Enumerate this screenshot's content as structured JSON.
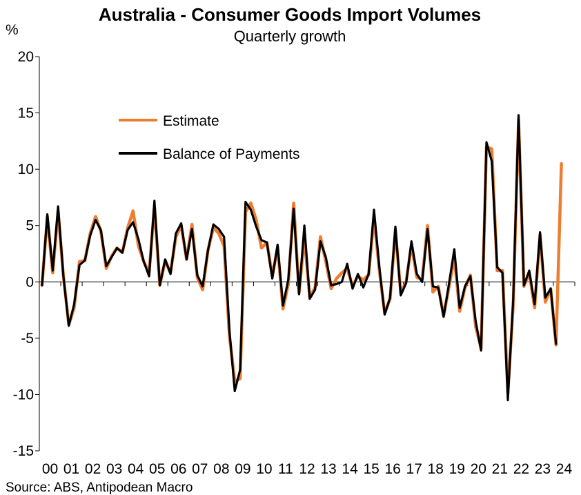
{
  "chart_data": {
    "type": "line",
    "title": "Australia - Consumer Goods Import Volumes",
    "subtitle": "Quarterly growth",
    "ylabel": "%",
    "ylim": [
      -15,
      20
    ],
    "yticks": [
      20,
      15,
      10,
      5,
      0,
      -5,
      -10,
      -15
    ],
    "x_start": "2000-Q1",
    "xtick_labels": [
      "00",
      "01",
      "02",
      "03",
      "04",
      "05",
      "06",
      "07",
      "08",
      "09",
      "10",
      "11",
      "12",
      "13",
      "14",
      "15",
      "16",
      "17",
      "18",
      "19",
      "20",
      "21",
      "22",
      "23",
      "24"
    ],
    "grid": false,
    "legend_position": "top-left",
    "source": "Source: ABS, Antipodean Macro",
    "series": [
      {
        "name": "Estimate",
        "color": "#ED7D31",
        "values": [
          -0.3,
          5.8,
          0.8,
          6.3,
          0.5,
          -3.8,
          -2.3,
          1.8,
          1.9,
          4.3,
          5.8,
          4.5,
          1.2,
          2.3,
          3.0,
          2.6,
          4.8,
          6.3,
          3.2,
          1.8,
          0.8,
          6.7,
          -0.3,
          1.9,
          0.8,
          4.0,
          5.0,
          2.0,
          5.1,
          0.4,
          -0.7,
          2.8,
          4.8,
          4.3,
          3.2,
          -4.8,
          -8.8,
          -8.6,
          6.2,
          7.0,
          5.5,
          3.0,
          3.5,
          0.5,
          3.1,
          -2.4,
          -0.2,
          7.0,
          -1.0,
          4.0,
          -1.4,
          -0.5,
          4.0,
          1.8,
          -0.6,
          0.3,
          0.8,
          1.2,
          -0.4,
          0.5,
          0.2,
          0.6,
          5.8,
          1.0,
          -2.8,
          -1.5,
          4.6,
          -1.0,
          0.0,
          3.3,
          0.4,
          0.2,
          5.0,
          -0.9,
          -0.4,
          -3.0,
          -0.5,
          2.2,
          -2.6,
          -0.5,
          0.6,
          -4.0,
          -5.9,
          12.0,
          11.8,
          1.0,
          1.0,
          -9.8,
          -2.0,
          14.4,
          -0.4,
          0.8,
          -2.3,
          4.2,
          -1.8,
          -0.6,
          -5.6,
          10.5
        ],
        "label_legend": "Estimate"
      },
      {
        "name": "Balance of Payments",
        "color": "#000000",
        "values": [
          -0.3,
          6.0,
          1.0,
          6.7,
          0.5,
          -3.9,
          -2.0,
          1.5,
          1.9,
          4.1,
          5.5,
          4.6,
          1.4,
          2.2,
          3.0,
          2.6,
          4.6,
          5.3,
          3.8,
          1.8,
          0.5,
          7.2,
          -0.3,
          2.0,
          0.7,
          4.3,
          5.2,
          2.0,
          4.7,
          0.6,
          -0.4,
          2.8,
          5.1,
          4.7,
          4.0,
          -4.3,
          -9.7,
          -7.8,
          7.1,
          6.4,
          4.9,
          3.7,
          3.5,
          0.3,
          3.3,
          -2.1,
          0.2,
          6.5,
          -1.1,
          5.0,
          -1.5,
          -0.7,
          3.6,
          2.2,
          -0.3,
          -0.2,
          0.0,
          1.6,
          -0.6,
          0.7,
          -0.5,
          0.7,
          6.4,
          1.3,
          -2.9,
          -1.4,
          4.9,
          -1.2,
          -0.1,
          3.6,
          0.7,
          0.0,
          4.7,
          -0.4,
          -0.5,
          -3.1,
          -0.2,
          2.9,
          -2.3,
          -0.4,
          0.5,
          -3.5,
          -6.1,
          12.4,
          10.7,
          1.3,
          0.8,
          -10.5,
          -1.5,
          14.8,
          -0.3,
          1.0,
          -2.0,
          4.4,
          -1.4,
          -0.6,
          -5.5
        ],
        "label_legend": "Balance of Payments"
      }
    ]
  }
}
